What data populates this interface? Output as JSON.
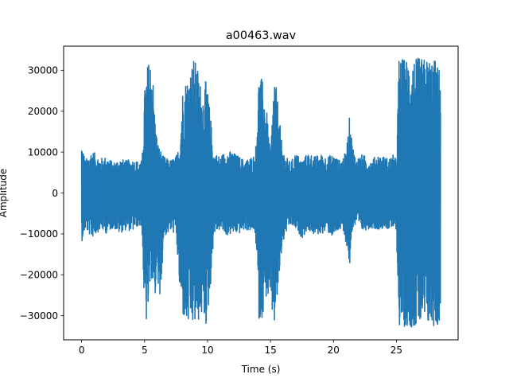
{
  "chart_data": {
    "type": "line",
    "title": "a00463.wav",
    "xlabel": "Time (s)",
    "ylabel": "Amplitude",
    "xlim": [
      -1.43,
      29.9
    ],
    "ylim": [
      -35900,
      35900
    ],
    "xticks": [
      0,
      5,
      10,
      15,
      20,
      25
    ],
    "yticks": [
      -30000,
      -20000,
      -10000,
      0,
      10000,
      20000,
      30000
    ],
    "grid": false,
    "series": [
      {
        "name": "a00463.wav",
        "color": "#1f77b4",
        "envelope": {
          "x": [
            0,
            0.3,
            0.8,
            1.5,
            2.0,
            2.5,
            3.0,
            3.5,
            4.0,
            4.5,
            4.8,
            5.0,
            5.2,
            5.4,
            5.6,
            5.8,
            6.0,
            6.2,
            6.5,
            7.0,
            7.5,
            7.8,
            8.0,
            8.3,
            8.6,
            8.9,
            9.2,
            9.6,
            9.9,
            10.2,
            10.5,
            11.0,
            11.5,
            12.0,
            12.5,
            13.0,
            13.5,
            13.8,
            14.1,
            14.4,
            14.7,
            15.0,
            15.3,
            15.6,
            15.9,
            16.2,
            16.6,
            17.0,
            17.5,
            18.0,
            18.5,
            19.0,
            19.5,
            20.0,
            20.5,
            21.0,
            21.3,
            21.5,
            21.8,
            22.3,
            23.0,
            23.5,
            24.0,
            24.4,
            24.8,
            25.0,
            25.2,
            25.5,
            26.0,
            26.5,
            27.0,
            27.5,
            28.0,
            28.5
          ],
          "max": [
            12800,
            8000,
            10500,
            8500,
            9000,
            7500,
            8500,
            8000,
            8300,
            7800,
            8000,
            25000,
            31000,
            33000,
            32500,
            20000,
            13000,
            11000,
            9000,
            8000,
            9000,
            12000,
            25000,
            28000,
            30000,
            33000,
            31000,
            24000,
            28000,
            20000,
            10000,
            9000,
            10500,
            10000,
            9000,
            8000,
            9000,
            9500,
            30000,
            27000,
            20000,
            9500,
            30000,
            22000,
            12000,
            9000,
            7500,
            10000,
            8000,
            10000,
            9000,
            9500,
            9000,
            9500,
            8000,
            10000,
            19500,
            12000,
            8500,
            9500,
            8000,
            9500,
            9000,
            8500,
            9500,
            8000,
            33000,
            33000,
            33000,
            33000,
            33000,
            33000,
            33000,
            30000
          ],
          "min": [
            -12000,
            -9000,
            -11000,
            -9000,
            -10000,
            -8500,
            -10000,
            -9000,
            -9500,
            -8000,
            -9000,
            -32000,
            -32000,
            -25000,
            -20000,
            -30000,
            -15000,
            -32000,
            -11000,
            -9500,
            -10000,
            -25000,
            -30000,
            -32800,
            -32800,
            -32800,
            -32000,
            -30000,
            -32800,
            -25000,
            -10000,
            -9000,
            -10500,
            -10000,
            -10000,
            -9000,
            -9500,
            -10000,
            -32000,
            -30000,
            -25000,
            -28000,
            -33000,
            -25000,
            -14000,
            -10000,
            -8000,
            -9000,
            -11000,
            -9000,
            -10500,
            -10000,
            -9500,
            -11000,
            -9000,
            -12000,
            -18500,
            -9000,
            -8000,
            -9500,
            -8500,
            -9000,
            -8500,
            -9000,
            -9000,
            -9000,
            -32800,
            -32800,
            -32800,
            -32800,
            -32800,
            -32800,
            -32800,
            -32500
          ]
        }
      }
    ]
  }
}
